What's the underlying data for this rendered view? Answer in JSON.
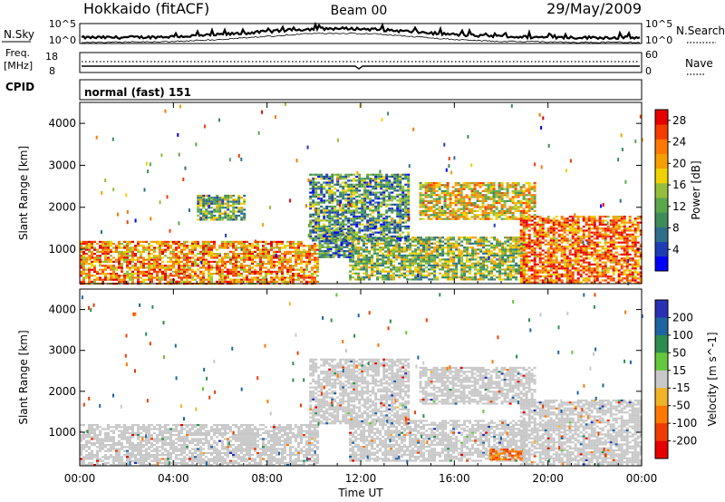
{
  "header": {
    "station": "Hokkaido (fitACF)",
    "beam": "Beam 00",
    "date": "29/May/2009"
  },
  "noise_panel": {
    "left_label": "N.Sky",
    "right_label": "N.Search",
    "left_ticks": [
      "10^5",
      "10^0"
    ],
    "right_ticks": [
      "10^5",
      "10^0"
    ]
  },
  "freq_panel": {
    "left_label_1": "Freq.",
    "left_label_2": "[MHz]",
    "right_label": "Nave",
    "left_ticks": [
      "18",
      "8"
    ],
    "right_ticks": [
      "60",
      "0"
    ]
  },
  "cpid_panel": {
    "label": "CPID",
    "mode": "normal (fast) 151"
  },
  "colors": {
    "power_scale": [
      "#0000ff",
      "#1e3cb4",
      "#2f6e8a",
      "#3d8c5a",
      "#5aa64a",
      "#96be3c",
      "#f0d200",
      "#f5a000",
      "#ff7800",
      "#f53c00",
      "#e60000"
    ],
    "velocity_scale": [
      "#2830b4",
      "#1e64a0",
      "#2d8c50",
      "#64c83c",
      "#c8c8c8",
      "#f0b428",
      "#ff7800",
      "#f03c00",
      "#e60000"
    ]
  },
  "chart_data": [
    {
      "type": "heatmap",
      "title": "",
      "xlabel": "Time UT",
      "ylabel": "Slant Range [km]",
      "xlim": [
        "00:00",
        "24:00"
      ],
      "ylim": [
        180,
        4500
      ],
      "x_ticks": [
        "00:00",
        "04:00",
        "08:00",
        "12:00",
        "16:00",
        "20:00",
        "00:00"
      ],
      "y_ticks": [
        "1000",
        "2000",
        "3000",
        "4000"
      ],
      "colorbar_label": "Power [dB]",
      "colorbar_ticks": [
        "28",
        "24",
        "20",
        "16",
        "12",
        "8",
        "4"
      ],
      "colorbar_range": [
        0,
        30
      ],
      "echo_regions": [
        {
          "t_start_h": 0.0,
          "t_end_h": 10.2,
          "range_start_km": 200,
          "range_end_km": 1200,
          "dominant_value": 22
        },
        {
          "t_start_h": 10.2,
          "t_end_h": 11.6,
          "range_start_km": 800,
          "range_end_km": 1500,
          "dominant_value": 8
        },
        {
          "t_start_h": 11.5,
          "t_end_h": 19.0,
          "range_start_km": 300,
          "range_end_km": 1300,
          "dominant_value": 14
        },
        {
          "t_start_h": 14.5,
          "t_end_h": 19.4,
          "range_start_km": 1700,
          "range_end_km": 2600,
          "dominant_value": 18
        },
        {
          "t_start_h": 18.8,
          "t_end_h": 24.0,
          "range_start_km": 200,
          "range_end_km": 1800,
          "dominant_value": 24
        },
        {
          "t_start_h": 9.8,
          "t_end_h": 14.0,
          "range_start_km": 1200,
          "range_end_km": 2800,
          "dominant_value": 10
        },
        {
          "t_start_h": 5.0,
          "t_end_h": 7.0,
          "range_start_km": 1700,
          "range_end_km": 2300,
          "dominant_value": 12
        }
      ]
    },
    {
      "type": "heatmap",
      "title": "",
      "xlabel": "Time UT",
      "ylabel": "Slant Range [km]",
      "xlim": [
        "00:00",
        "24:00"
      ],
      "ylim": [
        180,
        4500
      ],
      "x_ticks": [
        "00:00",
        "04:00",
        "08:00",
        "12:00",
        "16:00",
        "20:00",
        "00:00"
      ],
      "y_ticks": [
        "1000",
        "2000",
        "3000",
        "4000"
      ],
      "colorbar_label": "Velocity [m s^-1]",
      "colorbar_ticks": [
        "200",
        "100",
        "50",
        "15",
        "-15",
        "-50",
        "-100",
        "-200"
      ],
      "colorbar_range": [
        -250,
        250
      ],
      "echo_regions": [
        {
          "t_start_h": 0.0,
          "t_end_h": 10.2,
          "range_start_km": 200,
          "range_end_km": 1200,
          "dominant_value": 0
        },
        {
          "t_start_h": 11.5,
          "t_end_h": 19.0,
          "range_start_km": 300,
          "range_end_km": 1300,
          "dominant_value": 0
        },
        {
          "t_start_h": 17.5,
          "t_end_h": 19.0,
          "range_start_km": 350,
          "range_end_km": 600,
          "dominant_value": -60
        },
        {
          "t_start_h": 14.5,
          "t_end_h": 19.4,
          "range_start_km": 1700,
          "range_end_km": 2600,
          "dominant_value": 0
        },
        {
          "t_start_h": 18.8,
          "t_end_h": 24.0,
          "range_start_km": 200,
          "range_end_km": 1800,
          "dominant_value": 0
        },
        {
          "t_start_h": 9.8,
          "t_end_h": 14.0,
          "range_start_km": 1200,
          "range_end_km": 2800,
          "dominant_value": 0
        }
      ]
    }
  ]
}
